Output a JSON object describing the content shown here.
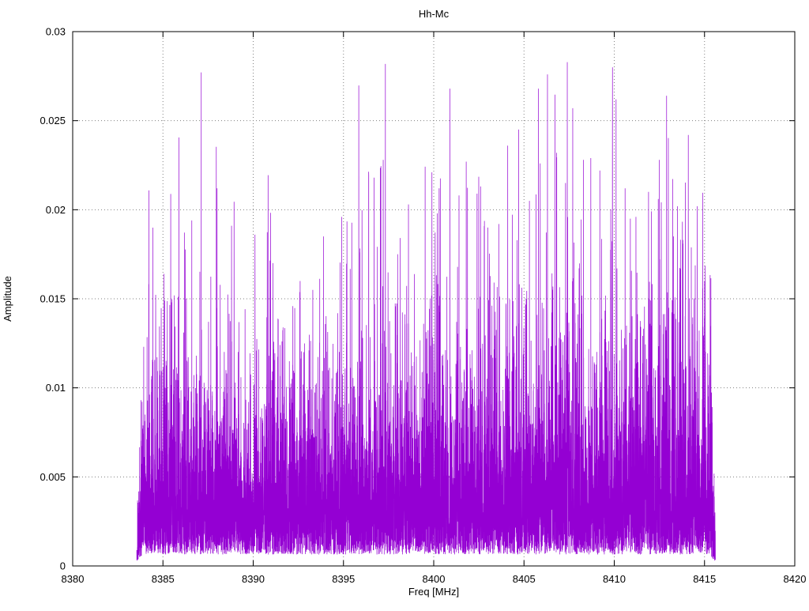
{
  "chart": {
    "title": "Hh-Mc",
    "xlabel": "Freq [MHz]",
    "ylabel": "Amplitude"
  },
  "chart_data": {
    "type": "line",
    "title": "Hh-Mc",
    "xlabel": "Freq [MHz]",
    "ylabel": "Amplitude",
    "xlim": [
      8380,
      8420
    ],
    "ylim": [
      0,
      0.03
    ],
    "x_ticks": [
      8380,
      8385,
      8390,
      8395,
      8400,
      8405,
      8410,
      8415,
      8420
    ],
    "x_tick_labels": [
      "8380",
      "8385",
      "8390",
      "8395",
      "8400",
      "8405",
      "8410",
      "8415",
      "8420"
    ],
    "y_ticks": [
      0,
      0.005,
      0.01,
      0.015,
      0.02,
      0.025,
      0.03
    ],
    "y_tick_labels": [
      "0",
      "0.005",
      "0.01",
      "0.015",
      "0.02",
      "0.025",
      "0.03"
    ],
    "grid": true,
    "grid_style": "dotted",
    "legend": "none",
    "series_color": "#9400d3",
    "signal_band": {
      "x_start": 8383.55,
      "x_end": 8415.6,
      "noise_floor": 0.0008,
      "body_mean": 0.0065,
      "body_max_typical": 0.014,
      "description": "dense noise-like amplitude spectrum occupying 8383.5-8415.6 MHz, solid fill below ~0.012 with sparse spikes up to ~0.028"
    },
    "peaks": [
      [
        8385.05,
        0.0164
      ],
      [
        8386.3,
        0.015
      ],
      [
        8386.6,
        0.0194
      ],
      [
        8388.0,
        0.0212
      ],
      [
        8388.8,
        0.0191
      ],
      [
        8390.1,
        0.0186
      ],
      [
        8391.1,
        0.017
      ],
      [
        8392.6,
        0.016
      ],
      [
        8393.3,
        0.0155
      ],
      [
        8393.9,
        0.0185
      ],
      [
        8394.9,
        0.0196
      ],
      [
        8395.9,
        0.0176
      ],
      [
        8396.4,
        0.0219
      ],
      [
        8396.7,
        0.0218
      ],
      [
        8397.2,
        0.0228
      ],
      [
        8398.0,
        0.0175
      ],
      [
        8398.6,
        0.0203
      ],
      [
        8399.9,
        0.0221
      ],
      [
        8400.3,
        0.0212
      ],
      [
        8400.9,
        0.0268
      ],
      [
        8401.4,
        0.0208
      ],
      [
        8401.8,
        0.0227
      ],
      [
        8402.4,
        0.0209
      ],
      [
        8403.0,
        0.019
      ],
      [
        8403.6,
        0.0192
      ],
      [
        8404.1,
        0.0236
      ],
      [
        8404.7,
        0.0245
      ],
      [
        8405.3,
        0.0205
      ],
      [
        8405.9,
        0.0226
      ],
      [
        8406.3,
        0.0276
      ],
      [
        8406.8,
        0.0232
      ],
      [
        8407.3,
        0.0215
      ],
      [
        8407.7,
        0.0257
      ],
      [
        8408.3,
        0.0228
      ],
      [
        8408.7,
        0.0229
      ],
      [
        8409.2,
        0.0222
      ],
      [
        8409.9,
        0.028
      ],
      [
        8410.1,
        0.0262
      ],
      [
        8410.6,
        0.0212
      ],
      [
        8411.2,
        0.0196
      ],
      [
        8411.9,
        0.021
      ],
      [
        8412.5,
        0.0228
      ],
      [
        8412.9,
        0.0264
      ],
      [
        8413.5,
        0.0202
      ],
      [
        8414.1,
        0.0242
      ],
      [
        8414.6,
        0.0202
      ]
    ]
  }
}
